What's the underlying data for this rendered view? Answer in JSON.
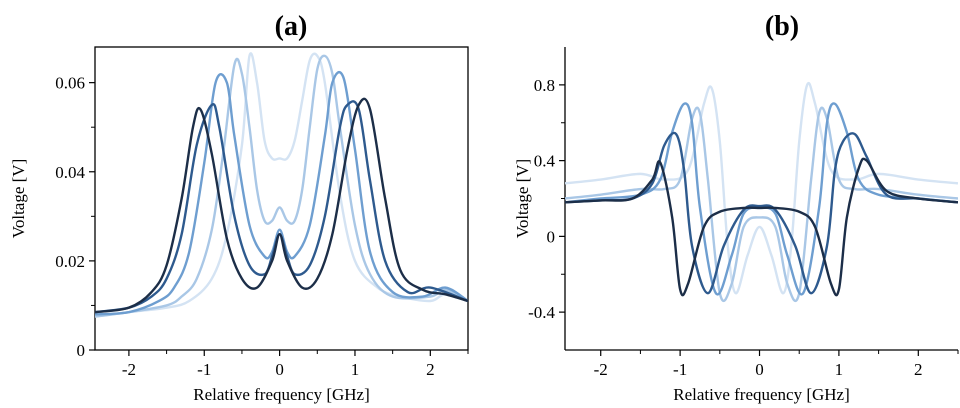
{
  "chart_data": [
    {
      "type": "line",
      "title": "(a)",
      "xlabel": "Relative frequency [GHz]",
      "ylabel": "Voltage [V]",
      "xlim": [
        -2.45,
        2.5
      ],
      "ylim": [
        0,
        0.068
      ],
      "xticks": [
        {
          "v": -2,
          "label": "-2"
        },
        {
          "v": -1,
          "label": "-1"
        },
        {
          "v": 0,
          "label": "0"
        },
        {
          "v": 1,
          "label": "1"
        },
        {
          "v": 2,
          "label": "2"
        }
      ],
      "yticks": [
        {
          "v": 0,
          "label": "0"
        },
        {
          "v": 0.02,
          "label": "0.02"
        },
        {
          "v": 0.04,
          "label": "0.04"
        },
        {
          "v": 0.06,
          "label": "0.06"
        }
      ],
      "grid": false,
      "series": [
        {
          "color": "#d4e3f3",
          "x": [
            -2.45,
            -2,
            -1.5,
            -1.2,
            -0.9,
            -0.7,
            -0.5,
            -0.4,
            -0.3,
            -0.2,
            -0.1,
            0,
            0.1,
            0.2,
            0.3,
            0.4,
            0.5,
            0.6,
            0.8,
            1,
            1.3,
            1.6,
            2,
            2.2,
            2.5
          ],
          "y": [
            0.0075,
            0.0085,
            0.0095,
            0.011,
            0.016,
            0.026,
            0.046,
            0.066,
            0.06,
            0.047,
            0.043,
            0.043,
            0.043,
            0.047,
            0.056,
            0.065,
            0.066,
            0.06,
            0.035,
            0.02,
            0.014,
            0.012,
            0.011,
            0.0125,
            0.011
          ]
        },
        {
          "color": "#a9c7e6",
          "x": [
            -2.45,
            -2,
            -1.5,
            -1.3,
            -1.1,
            -0.9,
            -0.75,
            -0.6,
            -0.5,
            -0.4,
            -0.3,
            -0.2,
            -0.1,
            0,
            0.1,
            0.2,
            0.3,
            0.4,
            0.5,
            0.6,
            0.7,
            0.8,
            1,
            1.2,
            1.5,
            2,
            2.2,
            2.5
          ],
          "y": [
            0.0075,
            0.0085,
            0.01,
            0.012,
            0.016,
            0.027,
            0.044,
            0.064,
            0.062,
            0.05,
            0.036,
            0.029,
            0.029,
            0.032,
            0.029,
            0.029,
            0.036,
            0.05,
            0.063,
            0.066,
            0.062,
            0.05,
            0.028,
            0.017,
            0.012,
            0.012,
            0.0135,
            0.011
          ]
        },
        {
          "color": "#6e9ed0",
          "x": [
            -2.45,
            -2,
            -1.6,
            -1.4,
            -1.2,
            -1,
            -0.85,
            -0.7,
            -0.6,
            -0.4,
            -0.2,
            -0.1,
            0,
            0.1,
            0.2,
            0.4,
            0.6,
            0.7,
            0.85,
            1,
            1.2,
            1.5,
            1.9,
            2.2,
            2.5
          ],
          "y": [
            0.008,
            0.0085,
            0.011,
            0.014,
            0.022,
            0.042,
            0.06,
            0.06,
            0.048,
            0.028,
            0.021,
            0.022,
            0.027,
            0.022,
            0.021,
            0.028,
            0.048,
            0.06,
            0.061,
            0.045,
            0.022,
            0.013,
            0.012,
            0.014,
            0.011
          ]
        },
        {
          "color": "#2e5a8e",
          "x": [
            -2.45,
            -2,
            -1.7,
            -1.5,
            -1.3,
            -1.1,
            -0.9,
            -0.8,
            -0.6,
            -0.4,
            -0.2,
            -0.1,
            0,
            0.1,
            0.2,
            0.4,
            0.6,
            0.8,
            0.9,
            1.05,
            1.2,
            1.4,
            1.7,
            2,
            2.5
          ],
          "y": [
            0.0085,
            0.0095,
            0.012,
            0.016,
            0.026,
            0.046,
            0.055,
            0.05,
            0.03,
            0.019,
            0.017,
            0.021,
            0.026,
            0.021,
            0.017,
            0.019,
            0.03,
            0.05,
            0.055,
            0.054,
            0.038,
            0.02,
            0.013,
            0.014,
            0.011
          ]
        },
        {
          "color": "#1c2e48",
          "x": [
            -2.45,
            -2,
            -1.7,
            -1.5,
            -1.3,
            -1.15,
            -1.05,
            -0.9,
            -0.7,
            -0.5,
            -0.3,
            -0.1,
            0,
            0.1,
            0.3,
            0.5,
            0.7,
            0.9,
            1.05,
            1.2,
            1.4,
            1.6,
            1.9,
            2.2,
            2.5
          ],
          "y": [
            0.0085,
            0.0095,
            0.013,
            0.019,
            0.034,
            0.05,
            0.054,
            0.044,
            0.025,
            0.016,
            0.014,
            0.02,
            0.026,
            0.02,
            0.014,
            0.016,
            0.026,
            0.045,
            0.055,
            0.054,
            0.034,
            0.018,
            0.0135,
            0.0125,
            0.011
          ]
        }
      ]
    },
    {
      "type": "line",
      "title": "(b)",
      "xlabel": "Relative frequency [GHz]",
      "ylabel": "Voltage [V]",
      "xlim": [
        -2.45,
        2.5
      ],
      "ylim": [
        -0.6,
        1.0
      ],
      "xticks": [
        {
          "v": -2,
          "label": "-2"
        },
        {
          "v": -1,
          "label": "-1"
        },
        {
          "v": 0,
          "label": "0"
        },
        {
          "v": 1,
          "label": "1"
        },
        {
          "v": 2,
          "label": "2"
        }
      ],
      "yticks": [
        {
          "v": -0.4,
          "label": "-0.4"
        },
        {
          "v": 0,
          "label": "0"
        },
        {
          "v": 0.4,
          "label": "0.4"
        },
        {
          "v": 0.8,
          "label": "0.8"
        }
      ],
      "grid": false,
      "series": [
        {
          "color": "#d4e3f3",
          "x": [
            -2.45,
            -2,
            -1.5,
            -1.2,
            -0.9,
            -0.7,
            -0.6,
            -0.5,
            -0.4,
            -0.3,
            -0.15,
            0,
            0.15,
            0.3,
            0.4,
            0.5,
            0.6,
            0.7,
            0.9,
            1.2,
            1.5,
            2,
            2.5
          ],
          "y": [
            0.28,
            0.3,
            0.33,
            0.3,
            0.35,
            0.7,
            0.78,
            0.5,
            -0.05,
            -0.3,
            -0.1,
            0.05,
            -0.1,
            -0.3,
            -0.05,
            0.5,
            0.8,
            0.7,
            0.35,
            0.3,
            0.33,
            0.3,
            0.28
          ]
        },
        {
          "color": "#a9c7e6",
          "x": [
            -2.45,
            -2,
            -1.5,
            -1.2,
            -1,
            -0.85,
            -0.75,
            -0.65,
            -0.5,
            -0.35,
            -0.2,
            0,
            0.2,
            0.35,
            0.5,
            0.65,
            0.75,
            0.85,
            1,
            1.2,
            1.5,
            2,
            2.5
          ],
          "y": [
            0.2,
            0.22,
            0.25,
            0.25,
            0.3,
            0.62,
            0.65,
            0.3,
            -0.3,
            -0.25,
            0.05,
            0.1,
            0.05,
            -0.25,
            -0.3,
            0.3,
            0.65,
            0.62,
            0.3,
            0.25,
            0.25,
            0.22,
            0.2
          ]
        },
        {
          "color": "#6e9ed0",
          "x": [
            -2.45,
            -2,
            -1.5,
            -1.25,
            -1.1,
            -0.95,
            -0.85,
            -0.75,
            -0.55,
            -0.35,
            -0.2,
            0,
            0.2,
            0.35,
            0.55,
            0.75,
            0.85,
            0.95,
            1.1,
            1.25,
            1.5,
            2,
            2.5
          ],
          "y": [
            0.18,
            0.2,
            0.22,
            0.3,
            0.55,
            0.7,
            0.6,
            0.15,
            -0.3,
            -0.1,
            0.12,
            0.15,
            0.12,
            -0.1,
            -0.3,
            0.15,
            0.6,
            0.7,
            0.55,
            0.3,
            0.22,
            0.2,
            0.18
          ]
        },
        {
          "color": "#2e5a8e",
          "x": [
            -2.45,
            -2,
            -1.6,
            -1.35,
            -1.2,
            -1.05,
            -0.95,
            -0.85,
            -0.65,
            -0.45,
            -0.2,
            0,
            0.2,
            0.45,
            0.65,
            0.85,
            0.95,
            1.05,
            1.2,
            1.35,
            1.6,
            2,
            2.5
          ],
          "y": [
            0.18,
            0.19,
            0.2,
            0.28,
            0.48,
            0.54,
            0.35,
            -0.05,
            -0.3,
            -0.05,
            0.14,
            0.16,
            0.14,
            -0.05,
            -0.3,
            -0.05,
            0.35,
            0.5,
            0.54,
            0.42,
            0.22,
            0.2,
            0.18
          ]
        },
        {
          "color": "#1c2e48",
          "x": [
            -2.45,
            -2,
            -1.6,
            -1.35,
            -1.25,
            -1.1,
            -1,
            -0.9,
            -0.7,
            -0.5,
            -0.2,
            0,
            0.2,
            0.5,
            0.7,
            0.9,
            1,
            1.1,
            1.25,
            1.35,
            1.6,
            2,
            2.5
          ],
          "y": [
            0.18,
            0.19,
            0.2,
            0.3,
            0.39,
            0.1,
            -0.28,
            -0.25,
            0.05,
            0.13,
            0.15,
            0.15,
            0.15,
            0.13,
            0.05,
            -0.25,
            -0.28,
            0.1,
            0.36,
            0.4,
            0.24,
            0.2,
            0.18
          ]
        }
      ]
    }
  ]
}
